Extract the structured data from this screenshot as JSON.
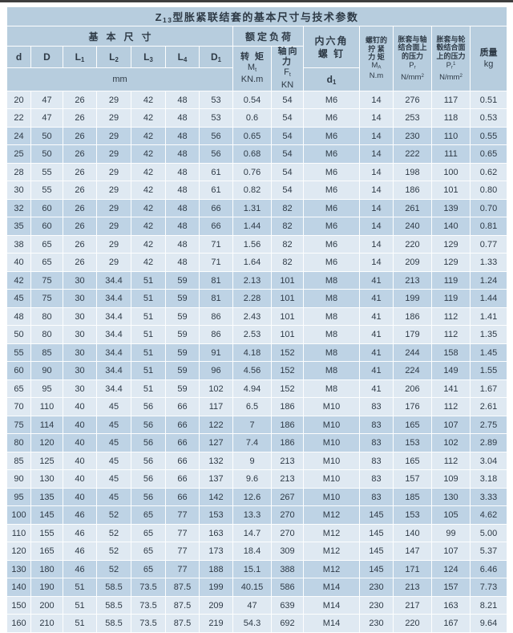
{
  "colors": {
    "top_bar": "#3e3e3e",
    "header_bg": "#b7cdde",
    "row_light": "#dfe9f2",
    "row_dark": "#bed3e5",
    "text": "#2e3a46"
  },
  "table": {
    "title": {
      "prefix": "Z",
      "sub": "13",
      "rest": "型胀紧联结套的基本尺寸与技术参数"
    },
    "header": {
      "basic_dims": "基本尺寸",
      "unit_mm": "mm",
      "columns": [
        {
          "main": "d",
          "sub": ""
        },
        {
          "main": "D",
          "sub": ""
        },
        {
          "main": "L",
          "sub": "1"
        },
        {
          "main": "L",
          "sub": "2"
        },
        {
          "main": "L",
          "sub": "3"
        },
        {
          "main": "L",
          "sub": "4"
        },
        {
          "main": "D",
          "sub": "1"
        }
      ],
      "rated_load": "额定负荷",
      "torque": {
        "name": "转 矩",
        "sym_main": "M",
        "sym_sub": "t",
        "unit": "KN.m"
      },
      "axial": {
        "name": "轴向力",
        "sym_main": "F",
        "sym_sub": "t",
        "unit": "KN"
      },
      "hex_screw": {
        "line1": "内六角",
        "line2": "螺 钉",
        "sym_main": "d",
        "sym_sub": "1"
      },
      "tightening": {
        "line1": "螺钉的",
        "line2": "拧 紧",
        "line3": "力 矩",
        "sym_main": "M",
        "sym_sub": "A",
        "unit": "N.m"
      },
      "pressure_shaft": {
        "line1": "胀套与轴",
        "line2": "结合面上",
        "line3": "的压力",
        "sym_main": "P",
        "sym_sub": "r",
        "sym_sup": "",
        "unit_main": "N/mm",
        "unit_sup": "2"
      },
      "pressure_hub": {
        "line1": "胀套与轮",
        "line2": "毂结合面",
        "line3": "上的压力",
        "sym_main": "P",
        "sym_sub": "r",
        "sym_sup": "1",
        "unit_main": "N/mm",
        "unit_sup": "2"
      },
      "mass": {
        "line1": "质量",
        "line2": "kg"
      }
    },
    "rows": [
      [
        "20",
        "47",
        "26",
        "29",
        "42",
        "48",
        "53",
        "0.54",
        "54",
        "M6",
        "14",
        "276",
        "117",
        "0.51"
      ],
      [
        "22",
        "47",
        "26",
        "29",
        "42",
        "48",
        "53",
        "0.6",
        "54",
        "M6",
        "14",
        "253",
        "118",
        "0.53"
      ],
      [
        "24",
        "50",
        "26",
        "29",
        "42",
        "48",
        "56",
        "0.65",
        "54",
        "M6",
        "14",
        "230",
        "110",
        "0.55"
      ],
      [
        "25",
        "50",
        "26",
        "29",
        "42",
        "48",
        "56",
        "0.68",
        "54",
        "M6",
        "14",
        "222",
        "111",
        "0.65"
      ],
      [
        "28",
        "55",
        "26",
        "29",
        "42",
        "48",
        "61",
        "0.76",
        "54",
        "M6",
        "14",
        "198",
        "100",
        "0.62"
      ],
      [
        "30",
        "55",
        "26",
        "29",
        "42",
        "48",
        "61",
        "0.82",
        "54",
        "M6",
        "14",
        "186",
        "101",
        "0.80"
      ],
      [
        "32",
        "60",
        "26",
        "29",
        "42",
        "48",
        "66",
        "1.31",
        "82",
        "M6",
        "14",
        "261",
        "139",
        "0.70"
      ],
      [
        "35",
        "60",
        "26",
        "29",
        "42",
        "48",
        "66",
        "1.44",
        "82",
        "M6",
        "14",
        "240",
        "140",
        "0.81"
      ],
      [
        "38",
        "65",
        "26",
        "29",
        "42",
        "48",
        "71",
        "1.56",
        "82",
        "M6",
        "14",
        "220",
        "129",
        "0.77"
      ],
      [
        "40",
        "65",
        "26",
        "29",
        "42",
        "48",
        "71",
        "1.64",
        "82",
        "M6",
        "14",
        "209",
        "129",
        "1.33"
      ],
      [
        "42",
        "75",
        "30",
        "34.4",
        "51",
        "59",
        "81",
        "2.13",
        "101",
        "M8",
        "41",
        "213",
        "119",
        "1.24"
      ],
      [
        "45",
        "75",
        "30",
        "34.4",
        "51",
        "59",
        "81",
        "2.28",
        "101",
        "M8",
        "41",
        "199",
        "119",
        "1.44"
      ],
      [
        "48",
        "80",
        "30",
        "34.4",
        "51",
        "59",
        "86",
        "2.43",
        "101",
        "M8",
        "41",
        "186",
        "112",
        "1.41"
      ],
      [
        "50",
        "80",
        "30",
        "34.4",
        "51",
        "59",
        "86",
        "2.53",
        "101",
        "M8",
        "41",
        "179",
        "112",
        "1.35"
      ],
      [
        "55",
        "85",
        "30",
        "34.4",
        "51",
        "59",
        "91",
        "4.18",
        "152",
        "M8",
        "41",
        "244",
        "158",
        "1.45"
      ],
      [
        "60",
        "90",
        "30",
        "34.4",
        "51",
        "59",
        "96",
        "4.56",
        "152",
        "M8",
        "41",
        "224",
        "149",
        "1.55"
      ],
      [
        "65",
        "95",
        "30",
        "34.4",
        "51",
        "59",
        "102",
        "4.94",
        "152",
        "M8",
        "41",
        "206",
        "141",
        "1.67"
      ],
      [
        "70",
        "110",
        "40",
        "45",
        "56",
        "66",
        "117",
        "6.5",
        "186",
        "M10",
        "83",
        "176",
        "112",
        "2.61"
      ],
      [
        "75",
        "114",
        "40",
        "45",
        "56",
        "66",
        "122",
        "7",
        "186",
        "M10",
        "83",
        "165",
        "107",
        "2.75"
      ],
      [
        "80",
        "120",
        "40",
        "45",
        "56",
        "66",
        "127",
        "7.4",
        "186",
        "M10",
        "83",
        "153",
        "102",
        "2.89"
      ],
      [
        "85",
        "125",
        "40",
        "45",
        "56",
        "66",
        "132",
        "9",
        "213",
        "M10",
        "83",
        "165",
        "112",
        "3.04"
      ],
      [
        "90",
        "130",
        "40",
        "45",
        "56",
        "66",
        "137",
        "9.6",
        "213",
        "M10",
        "83",
        "157",
        "109",
        "3.18"
      ],
      [
        "95",
        "135",
        "40",
        "45",
        "56",
        "66",
        "142",
        "12.6",
        "267",
        "M10",
        "83",
        "185",
        "130",
        "3.33"
      ],
      [
        "100",
        "145",
        "46",
        "52",
        "65",
        "77",
        "153",
        "13.3",
        "270",
        "M12",
        "145",
        "153",
        "105",
        "4.62"
      ],
      [
        "110",
        "155",
        "46",
        "52",
        "65",
        "77",
        "163",
        "14.7",
        "270",
        "M12",
        "145",
        "140",
        "99",
        "5.00"
      ],
      [
        "120",
        "165",
        "46",
        "52",
        "65",
        "77",
        "173",
        "18.4",
        "309",
        "M12",
        "145",
        "147",
        "107",
        "5.37"
      ],
      [
        "130",
        "180",
        "46",
        "52",
        "65",
        "77",
        "188",
        "15.1",
        "388",
        "M12",
        "145",
        "171",
        "124",
        "6.46"
      ],
      [
        "140",
        "190",
        "51",
        "58.5",
        "73.5",
        "87.5",
        "199",
        "40.15",
        "586",
        "M14",
        "230",
        "213",
        "157",
        "7.73"
      ],
      [
        "150",
        "200",
        "51",
        "58.5",
        "73.5",
        "87.5",
        "209",
        "47",
        "639",
        "M14",
        "230",
        "217",
        "163",
        "8.21"
      ],
      [
        "160",
        "210",
        "51",
        "58.5",
        "73.5",
        "87.5",
        "219",
        "54.3",
        "692",
        "M14",
        "230",
        "220",
        "167",
        "9.64"
      ]
    ]
  }
}
